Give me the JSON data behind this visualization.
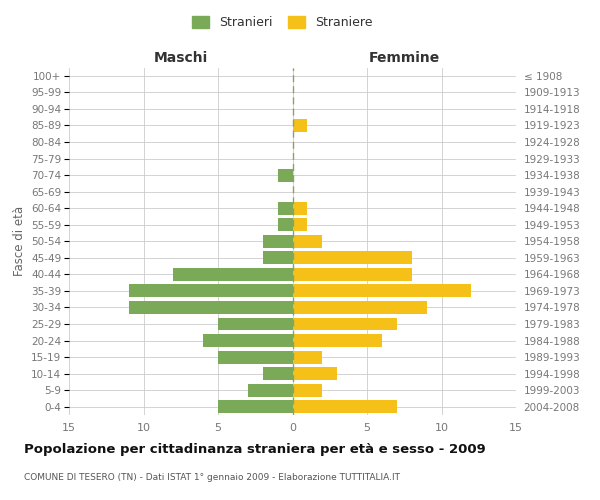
{
  "age_groups": [
    "100+",
    "95-99",
    "90-94",
    "85-89",
    "80-84",
    "75-79",
    "70-74",
    "65-69",
    "60-64",
    "55-59",
    "50-54",
    "45-49",
    "40-44",
    "35-39",
    "30-34",
    "25-29",
    "20-24",
    "15-19",
    "10-14",
    "5-9",
    "0-4"
  ],
  "birth_years": [
    "≤ 1908",
    "1909-1913",
    "1914-1918",
    "1919-1923",
    "1924-1928",
    "1929-1933",
    "1934-1938",
    "1939-1943",
    "1944-1948",
    "1949-1953",
    "1954-1958",
    "1959-1963",
    "1964-1968",
    "1969-1973",
    "1974-1978",
    "1979-1983",
    "1984-1988",
    "1989-1993",
    "1994-1998",
    "1999-2003",
    "2004-2008"
  ],
  "males": [
    0,
    0,
    0,
    0,
    0,
    0,
    1,
    0,
    1,
    1,
    2,
    2,
    8,
    11,
    11,
    5,
    6,
    5,
    2,
    3,
    5
  ],
  "females": [
    0,
    0,
    0,
    1,
    0,
    0,
    0,
    0,
    1,
    1,
    2,
    8,
    8,
    12,
    9,
    7,
    6,
    2,
    3,
    2,
    7
  ],
  "male_color": "#7aaa58",
  "female_color": "#f5c118",
  "background_color": "#ffffff",
  "grid_color": "#cccccc",
  "centerline_color": "#999966",
  "title": "Popolazione per cittadinanza straniera per età e sesso - 2009",
  "subtitle": "COMUNE DI TESERO (TN) - Dati ISTAT 1° gennaio 2009 - Elaborazione TUTTITALIA.IT",
  "ylabel_left": "Fasce di età",
  "header_left": "Maschi",
  "header_right": "Femmine",
  "legend_male": "Stranieri",
  "legend_female": "Straniere",
  "xlim": 15,
  "bar_height": 0.78
}
